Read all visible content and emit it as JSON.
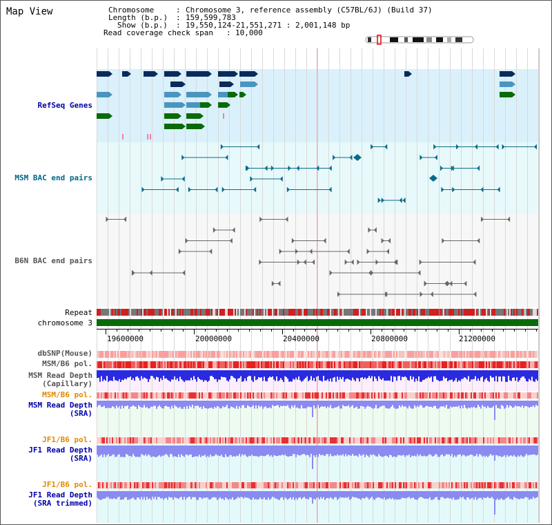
{
  "title": "Map View",
  "info": {
    "chromosome_key": "Chromosome",
    "chromosome_val": "Chromosome 3, reference assembly (C57BL/6J) (Build 37)",
    "length_key": "Length (b.p.)",
    "length_val": "159,599,783",
    "show_key": "Show (b.p.)",
    "show_val": "19,550,124-21,551,271 : 2,001,148 bp",
    "coverage_key": "Read coverage check span",
    "coverage_val": "10,000"
  },
  "tracks": {
    "refseq": "RefSeq Genes",
    "msm_bac": "MSM BAC end pairs",
    "b6n_bac": "B6N BAC end pairs",
    "repeat": "Repeat",
    "chromosome": "chromosome 3",
    "dbsnp": "dbSNP(Mouse)",
    "msm_b6_pol_1": "MSM/B6 pol.",
    "msm_depth_cap_1": "MSM Read Depth",
    "msm_depth_cap_2": "(Capillary)",
    "msm_b6_pol_2": "MSM/B6 pol.",
    "msm_depth_sra_1": "MSM Read Depth",
    "msm_depth_sra_2": "(SRA)",
    "jf1_b6_pol_1": "JF1/B6 pol.",
    "jf1_depth_sra_1": "JF1 Read Depth",
    "jf1_depth_sra_2": "(SRA)",
    "jf1_b6_pol_2": "JF1/B6 pol.",
    "jf1_depth_trim_1": "JF1 Read Depth",
    "jf1_depth_trim_2": "(SRA trimmed)"
  },
  "axis_ticks": [
    "19600000",
    "20000000",
    "20400000",
    "20800000",
    "21200000"
  ],
  "colors": {
    "refseq_label": "#0000aa",
    "msm_bac_label": "#006688",
    "b6n_label": "#555555",
    "gene_dark": "#0a2a5a",
    "gene_mid": "#4a95c0",
    "gene_green": "#0a6a0a",
    "chromosome_bar": "#0a6a0a",
    "orange_label": "#e08a00",
    "blue_label": "#0000aa",
    "depth_blue": "#2a2ae0",
    "depth_lavender": "#8a8af0"
  }
}
